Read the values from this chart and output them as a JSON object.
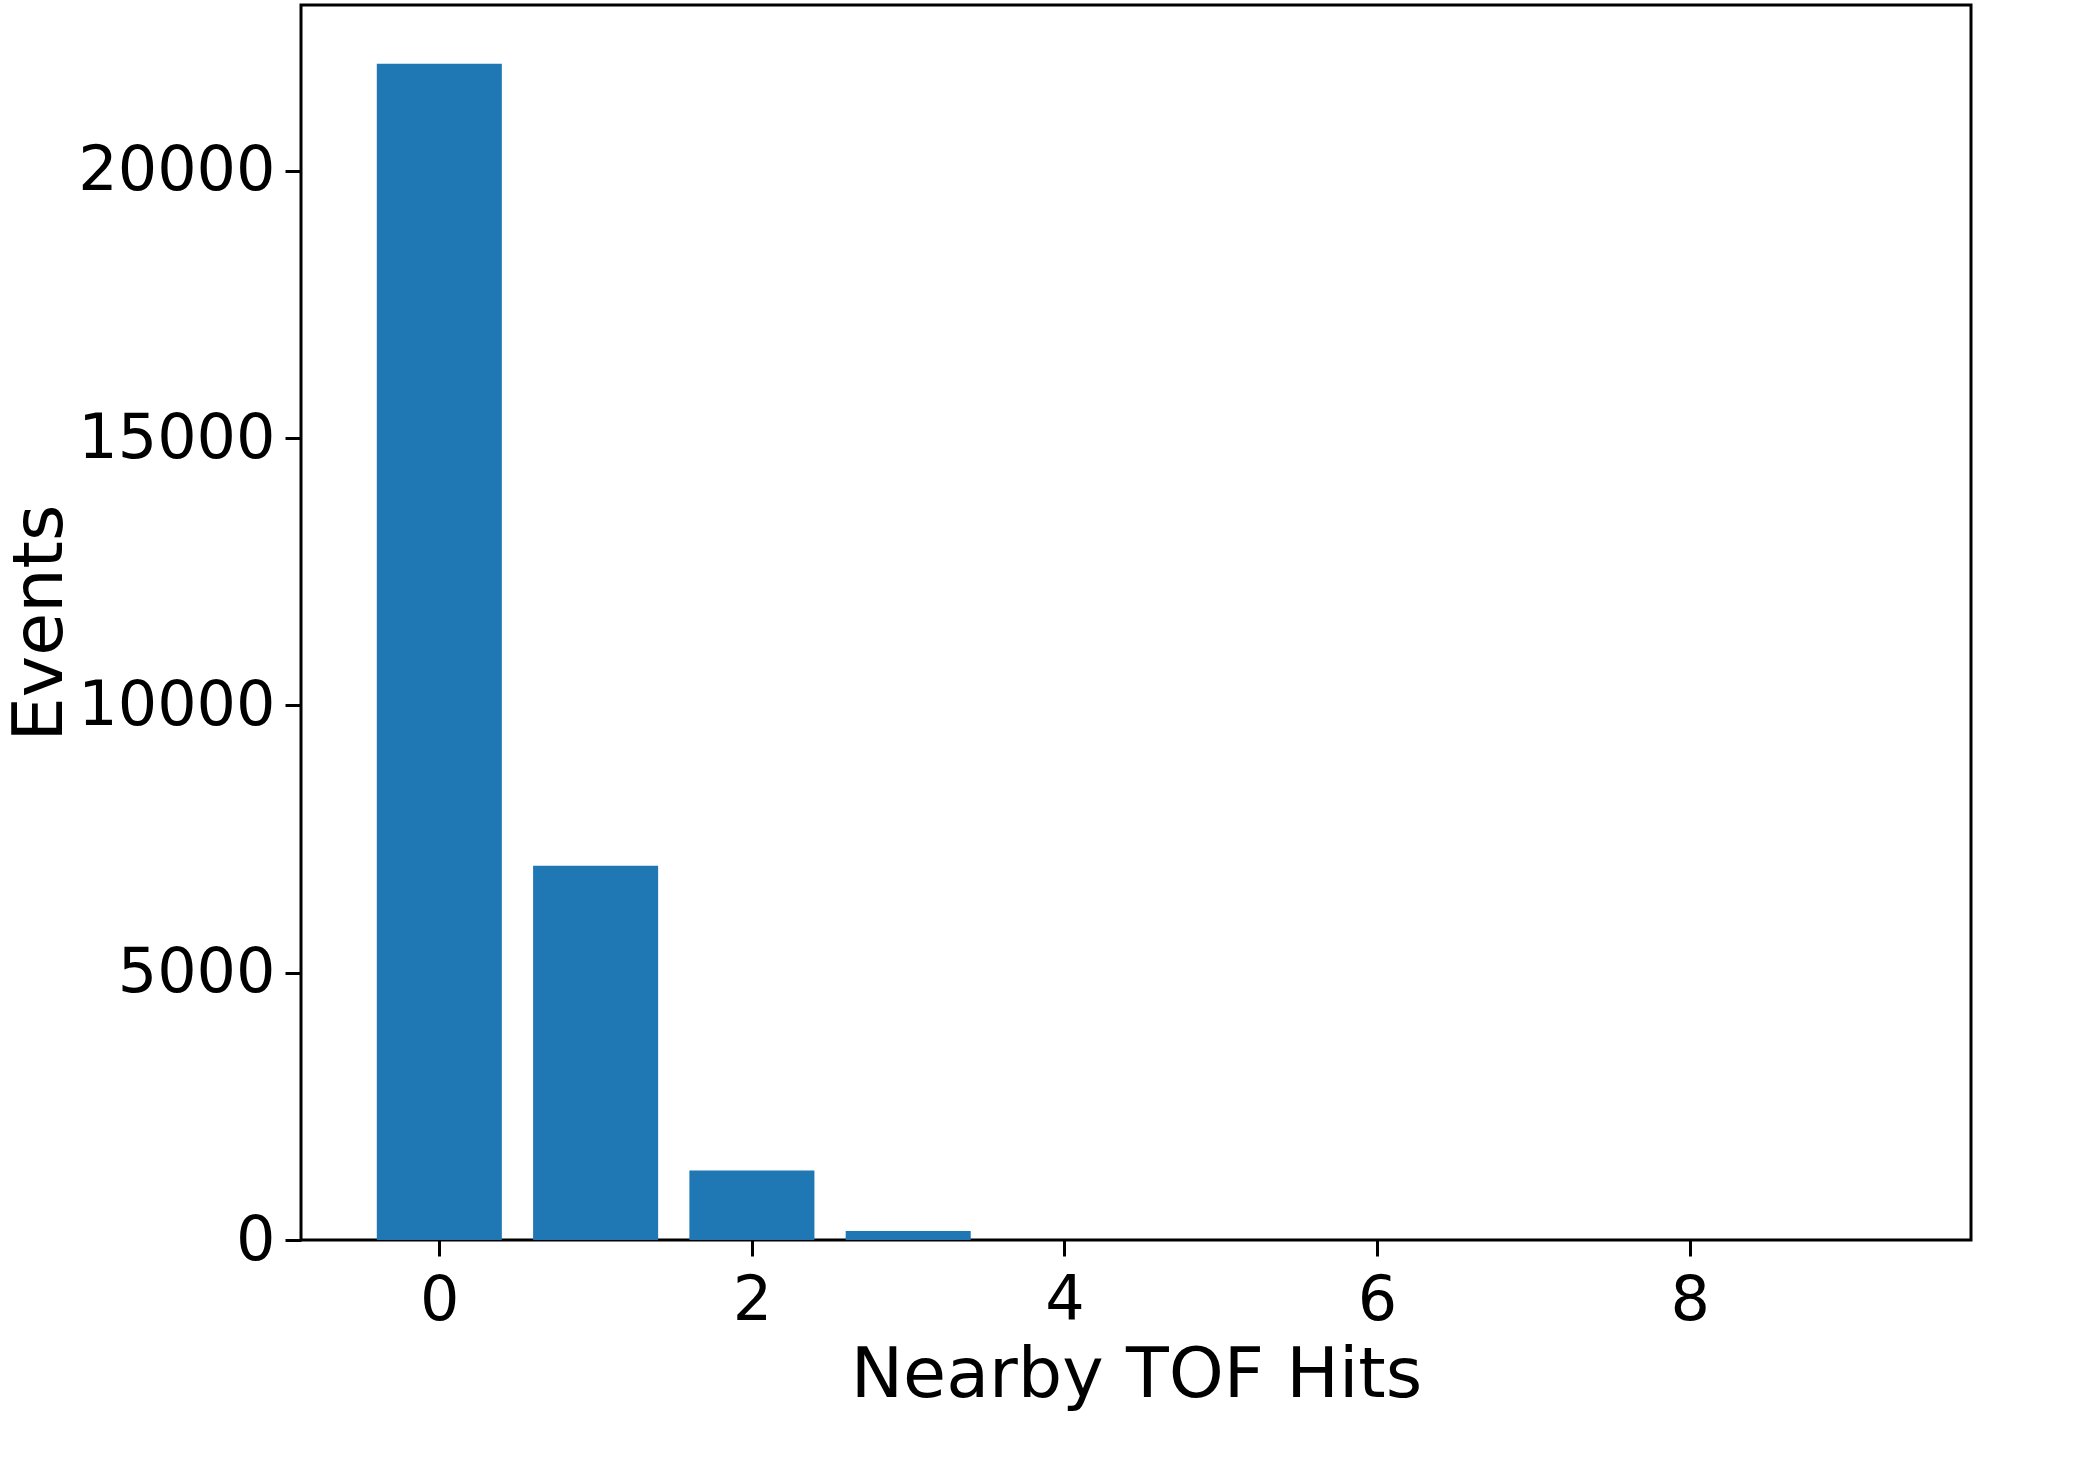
{
  "chart_data": {
    "type": "bar",
    "xlabel": "Nearby TOF Hits",
    "ylabel": "Events",
    "x": [
      0,
      1,
      2,
      3
    ],
    "values": [
      22000,
      7000,
      1300,
      170
    ],
    "color": "#1f77b4",
    "xlim": [
      -0.885,
      9.8
    ],
    "xticks": [
      0,
      2,
      4,
      6,
      8
    ],
    "ylim": [
      0,
      23100
    ],
    "yticks": [
      0,
      5000,
      10000,
      15000,
      20000
    ],
    "grid": false
  }
}
